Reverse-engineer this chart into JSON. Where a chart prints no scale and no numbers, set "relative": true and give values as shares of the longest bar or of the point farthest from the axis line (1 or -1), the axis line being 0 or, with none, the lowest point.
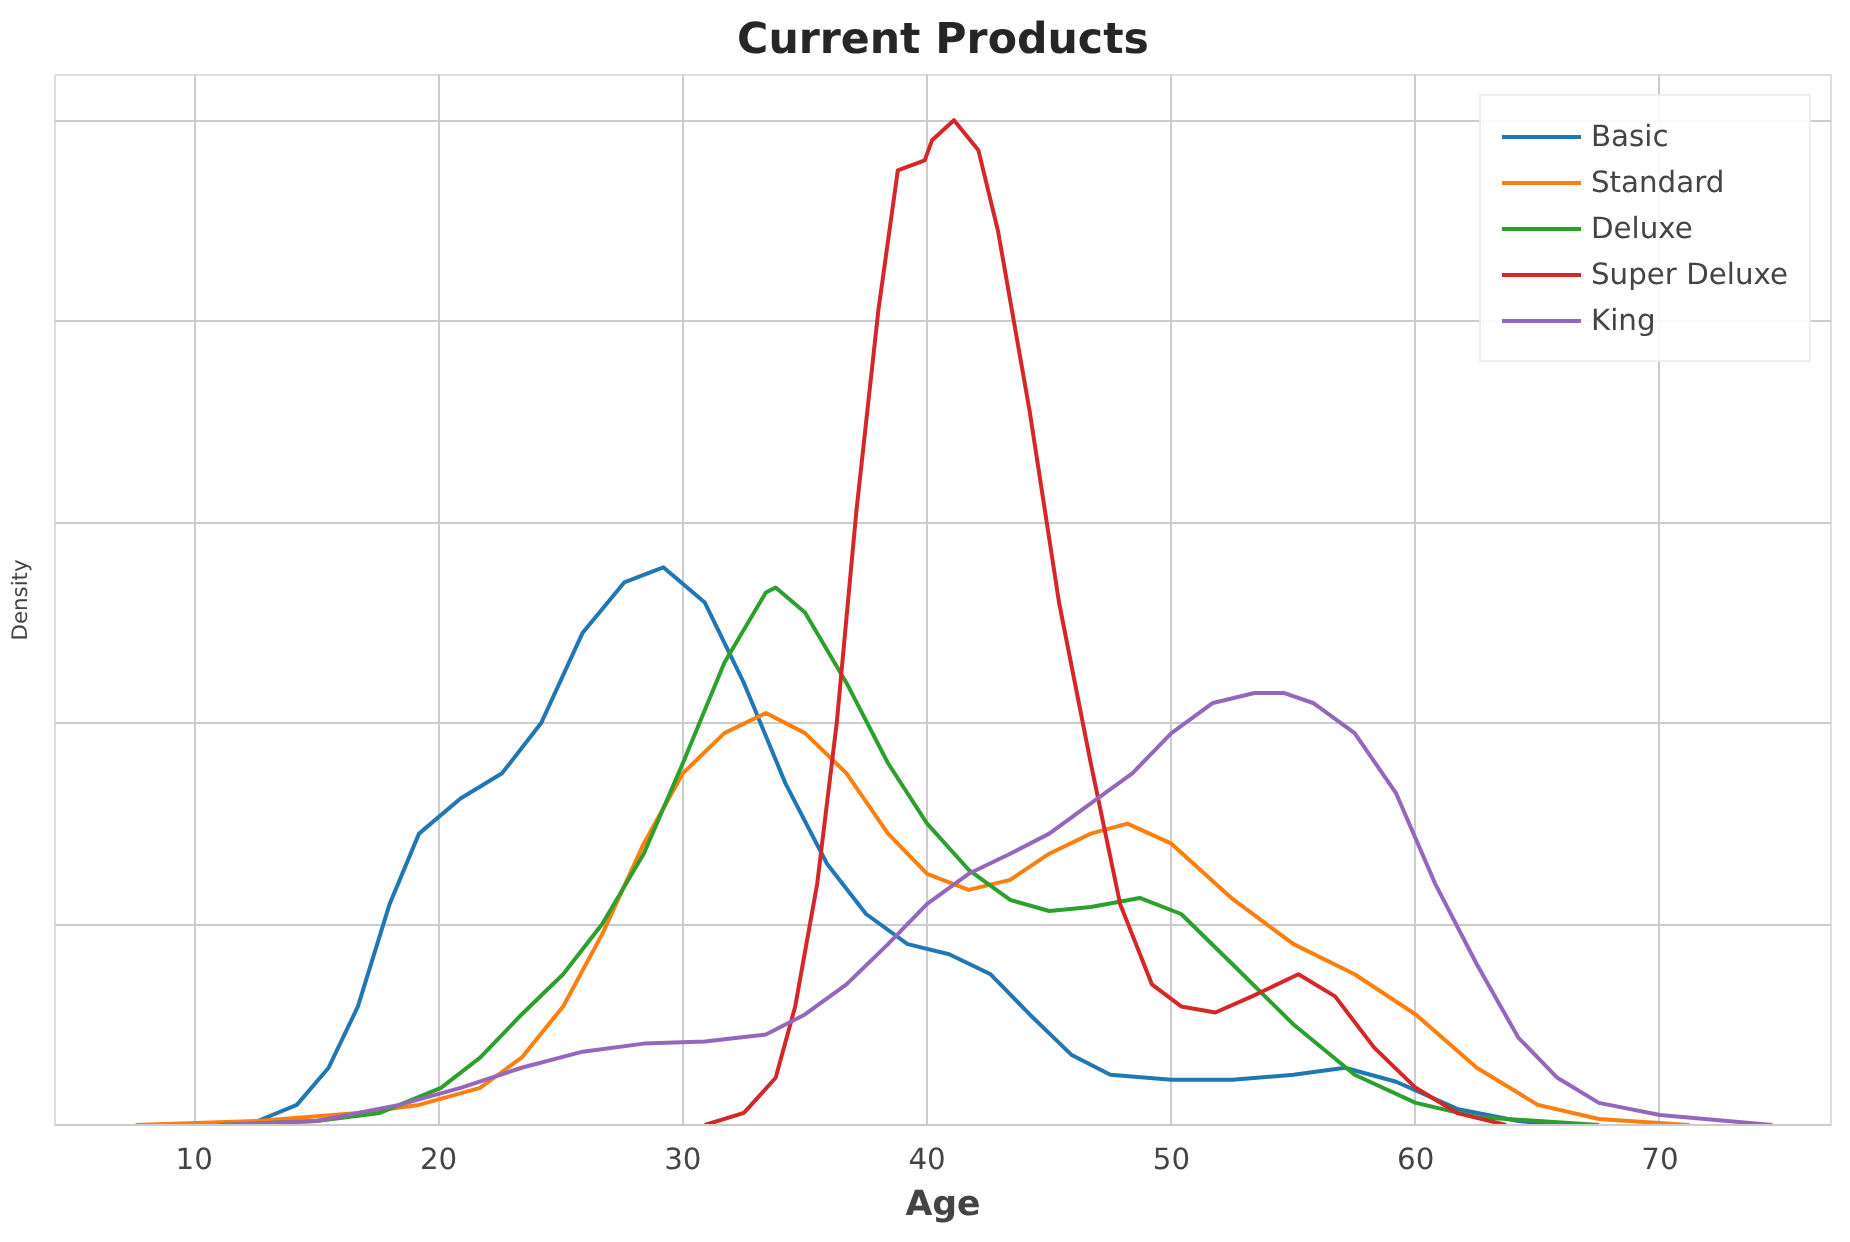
{
  "chart_data": {
    "type": "line",
    "title": "Current Products",
    "xlabel": "Age",
    "ylabel": "Density",
    "relative": true,
    "xlim": [
      4.3,
      77
    ],
    "xticks": [
      10,
      20,
      30,
      40,
      50,
      60,
      70
    ],
    "grid": true,
    "legend": "top right",
    "tick_labels": "x",
    "line_style": "solid",
    "series": [
      {
        "name": "Basic",
        "color": "#1f77b4",
        "x": [
          11,
          12.6,
          14.2,
          15.5,
          16.7,
          18,
          19.2,
          20.9,
          22.6,
          24.2,
          25.9,
          27.6,
          29.2,
          30.9,
          32.5,
          34.2,
          35.9,
          37.5,
          39.2,
          40.9,
          42.6,
          44.2,
          45.9,
          47.5,
          50,
          52.5,
          55,
          57.1,
          59.2,
          61.7,
          64.2,
          65.8
        ],
        "values": [
          0,
          0.004,
          0.02,
          0.057,
          0.118,
          0.22,
          0.29,
          0.325,
          0.35,
          0.4,
          0.49,
          0.54,
          0.555,
          0.52,
          0.44,
          0.34,
          0.26,
          0.21,
          0.18,
          0.17,
          0.15,
          0.11,
          0.07,
          0.05,
          0.045,
          0.045,
          0.05,
          0.057,
          0.043,
          0.016,
          0.004,
          0
        ]
      },
      {
        "name": "Standard",
        "color": "#ff7f0e",
        "x": [
          7.6,
          12.6,
          16.7,
          19.2,
          21.7,
          23.4,
          25.1,
          26.7,
          28.4,
          30,
          31.7,
          33.4,
          35,
          36.7,
          38.4,
          40,
          41.7,
          43.4,
          45,
          46.7,
          48.2,
          50,
          52.5,
          55,
          57.5,
          60,
          62.5,
          65,
          67.5,
          71.2
        ],
        "values": [
          0,
          0.004,
          0.012,
          0.02,
          0.037,
          0.067,
          0.118,
          0.19,
          0.28,
          0.35,
          0.39,
          0.41,
          0.39,
          0.35,
          0.29,
          0.25,
          0.234,
          0.244,
          0.27,
          0.29,
          0.3,
          0.28,
          0.225,
          0.18,
          0.15,
          0.11,
          0.057,
          0.02,
          0.006,
          0
        ]
      },
      {
        "name": "Deluxe",
        "color": "#2ca02c",
        "x": [
          11,
          15,
          17.6,
          20.1,
          21.7,
          23.4,
          25.1,
          26.7,
          28.4,
          30,
          31.7,
          33.4,
          33.8,
          35,
          36.7,
          38.4,
          40,
          41.7,
          43.4,
          45,
          46.7,
          48.7,
          50.4,
          52.5,
          55,
          57.5,
          60,
          62.5,
          67.5
        ],
        "values": [
          0,
          0.004,
          0.012,
          0.037,
          0.067,
          0.11,
          0.15,
          0.2,
          0.27,
          0.36,
          0.46,
          0.53,
          0.535,
          0.51,
          0.44,
          0.36,
          0.3,
          0.254,
          0.224,
          0.213,
          0.217,
          0.226,
          0.21,
          0.16,
          0.1,
          0.05,
          0.022,
          0.008,
          0
        ]
      },
      {
        "name": "Super Deluxe",
        "color": "#d62728",
        "x": [
          30.9,
          32.5,
          33.8,
          34.6,
          35.5,
          36.3,
          37.1,
          38,
          38.8,
          39.9,
          40.2,
          41.1,
          42.1,
          42.9,
          44.2,
          45.4,
          46.7,
          47.9,
          49.2,
          50.4,
          51.8,
          53.3,
          55.2,
          56.7,
          58.3,
          60,
          61.7,
          63.7
        ],
        "values": [
          0,
          0.012,
          0.047,
          0.118,
          0.24,
          0.4,
          0.61,
          0.81,
          0.95,
          0.96,
          0.98,
          1,
          0.97,
          0.89,
          0.71,
          0.52,
          0.36,
          0.22,
          0.14,
          0.118,
          0.112,
          0.128,
          0.15,
          0.128,
          0.077,
          0.037,
          0.012,
          0
        ]
      },
      {
        "name": "King",
        "color": "#9467bd",
        "x": [
          11,
          15,
          18.4,
          20.9,
          23.4,
          25.9,
          28.4,
          30.9,
          33.4,
          35,
          36.7,
          38.4,
          40,
          41.7,
          43.4,
          45,
          46.7,
          48.4,
          50,
          51.7,
          53.4,
          54.6,
          55.8,
          57.5,
          59.2,
          60.8,
          62.5,
          64.2,
          65.8,
          67.5,
          70,
          74.6
        ],
        "values": [
          0,
          0.004,
          0.02,
          0.037,
          0.057,
          0.073,
          0.081,
          0.083,
          0.09,
          0.11,
          0.14,
          0.18,
          0.22,
          0.25,
          0.27,
          0.29,
          0.32,
          0.35,
          0.39,
          0.42,
          0.43,
          0.43,
          0.42,
          0.39,
          0.33,
          0.24,
          0.16,
          0.087,
          0.047,
          0.022,
          0.01,
          0
        ]
      }
    ]
  }
}
